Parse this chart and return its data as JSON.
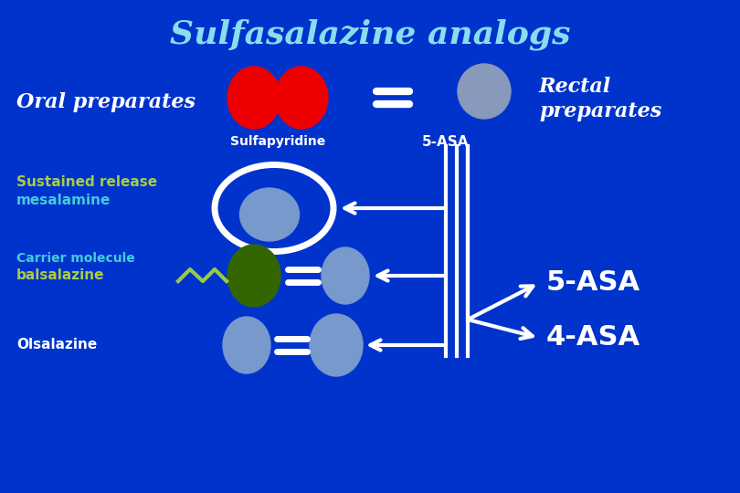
{
  "title": "Sulfasalazine analogs",
  "title_color": "#88DDEE",
  "background_color": "#0033CC",
  "oral_preparates_text": "Oral preparates",
  "oral_preparates_color": "#FFFFFF",
  "rectal_preparates_line1": "Rectal",
  "rectal_preparates_line2": "preparates",
  "rectal_preparates_color": "#FFFFFF",
  "sulfapyridine_label": "Sulfapyridine",
  "five_asa_label_top": "5-ASA",
  "five_asa_label_right": "5-ASA",
  "four_asa_label_right": "4-ASA",
  "sustained_release_line1": "Sustained release",
  "sustained_release_line2": "mesalamine",
  "carrier_molecule_text": "Carrier molecule",
  "balsalazine_text": "balsalazine",
  "olsalazine_text": "Olsalazine",
  "red_circle_color": "#EE0000",
  "blue_circle_color": "#6688BB",
  "blue_circle_light": "#7799CC",
  "green_circle_color": "#336600",
  "white_color": "#FFFFFF",
  "yellow_green_color": "#99CC44",
  "cyan_color": "#44CCDD",
  "label_color_yellow_green": "#AACC44",
  "label_color_cyan": "#44CCDD",
  "label_color_white": "#FFFFFF",
  "bg_blue": "#0033CC"
}
